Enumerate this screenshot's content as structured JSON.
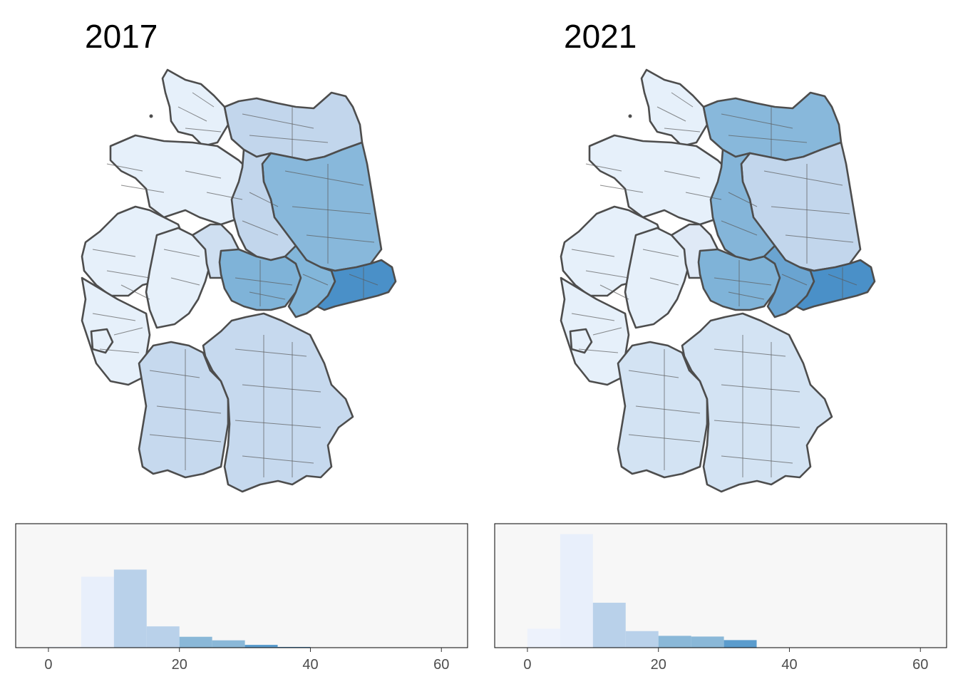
{
  "maps": [
    {
      "title": "2017",
      "shading": {
        "west": "#e6f0fa",
        "south": "#c6d9ee",
        "center": "#cfdff1",
        "mv": "#c2d6ec",
        "brandenburg": "#88b8db",
        "sachsen_anhalt": "#c2d6ec",
        "thueringen": "#7fb3d8",
        "sachsen_west": "#82b6da",
        "sachsen_east": "#4a90c8"
      }
    },
    {
      "title": "2021",
      "shading": {
        "west": "#e6f0fa",
        "south": "#d3e3f3",
        "center": "#dfe9f6",
        "mv": "#88b8db",
        "brandenburg": "#c2d6ec",
        "sachsen_anhalt": "#84b5d9",
        "thueringen": "#7fb3d8",
        "sachsen_west": "#6aa4d1",
        "sachsen_east": "#4a90c8"
      }
    }
  ],
  "chart_data": [
    {
      "type": "bar",
      "title": "",
      "x_bins": [
        [
          0,
          5
        ],
        [
          5,
          10
        ],
        [
          10,
          15
        ],
        [
          15,
          20
        ],
        [
          20,
          25
        ],
        [
          25,
          30
        ],
        [
          30,
          35
        ],
        [
          35,
          40
        ]
      ],
      "values": [
        0.5,
        30,
        33,
        9,
        4.6,
        3.1,
        1.2,
        0.3
      ],
      "bar_colors": [
        "#f0f5fc",
        "#e8effb",
        "#b9d1ea",
        "#b9d1ea",
        "#8ab8d8",
        "#8ab8d8",
        "#5b9ccd",
        "#4a90c8"
      ],
      "xlim": [
        -5,
        64
      ],
      "ylim": [
        0,
        50
      ],
      "xticks": [
        0,
        20,
        40,
        60
      ],
      "xlabel": "",
      "ylabel": "",
      "panel_background": "#f7f7f7"
    },
    {
      "type": "bar",
      "title": "",
      "x_bins": [
        [
          0,
          5
        ],
        [
          5,
          10
        ],
        [
          10,
          15
        ],
        [
          15,
          20
        ],
        [
          20,
          25
        ],
        [
          25,
          30
        ],
        [
          30,
          35
        ]
      ],
      "values": [
        8,
        48,
        19,
        7,
        5,
        4.7,
        3.2
      ],
      "bar_colors": [
        "#edf2fc",
        "#e8effb",
        "#b9d1ea",
        "#b9d1ea",
        "#8ab8d8",
        "#8ab8d8",
        "#5b9ccd"
      ],
      "xlim": [
        -5,
        64
      ],
      "ylim": [
        0,
        50
      ],
      "xticks": [
        0,
        20,
        40,
        60
      ],
      "xlabel": "",
      "ylabel": "",
      "panel_background": "#f7f7f7"
    }
  ]
}
